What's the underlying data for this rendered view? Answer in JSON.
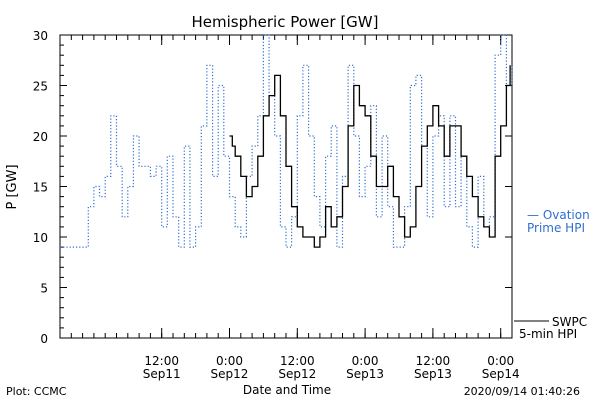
{
  "chart_data": {
    "type": "line",
    "title": "Hemispheric Power [GW]",
    "xlabel": "Date and Time",
    "ylabel": "P [GW]",
    "ylim": [
      0,
      30
    ],
    "xlim": [
      "2020-09-10T18:00",
      "2020-09-14T02:00"
    ],
    "yticks": [
      0,
      5,
      10,
      15,
      20,
      25,
      30
    ],
    "xticks": [
      {
        "x": "2020-09-11T12:00",
        "line1": "12:00",
        "line2": "Sep11"
      },
      {
        "x": "2020-09-12T00:00",
        "line1": "0:00",
        "line2": "Sep12"
      },
      {
        "x": "2020-09-12T12:00",
        "line1": "12:00",
        "line2": "Sep12"
      },
      {
        "x": "2020-09-13T00:00",
        "line1": "0:00",
        "line2": "Sep13"
      },
      {
        "x": "2020-09-13T12:00",
        "line1": "12:00",
        "line2": "Sep13"
      },
      {
        "x": "2020-09-14T00:00",
        "line1": "0:00",
        "line2": "Sep14"
      }
    ],
    "series": [
      {
        "name": "Ovation Prime HPI",
        "style": "dotted",
        "color": "#2f6fd0",
        "points": [
          [
            "2020-09-10T18:00",
            9
          ],
          [
            "2020-09-10T20:00",
            9
          ],
          [
            "2020-09-10T22:00",
            9
          ],
          [
            "2020-09-10T23:00",
            13
          ],
          [
            "2020-09-11T00:00",
            15
          ],
          [
            "2020-09-11T01:00",
            14
          ],
          [
            "2020-09-11T02:00",
            16
          ],
          [
            "2020-09-11T03:00",
            22
          ],
          [
            "2020-09-11T04:00",
            17
          ],
          [
            "2020-09-11T05:00",
            12
          ],
          [
            "2020-09-11T06:00",
            15
          ],
          [
            "2020-09-11T07:00",
            20
          ],
          [
            "2020-09-11T08:00",
            17
          ],
          [
            "2020-09-11T09:00",
            17
          ],
          [
            "2020-09-11T10:00",
            16
          ],
          [
            "2020-09-11T11:00",
            17
          ],
          [
            "2020-09-11T12:00",
            11
          ],
          [
            "2020-09-11T13:00",
            18
          ],
          [
            "2020-09-11T14:00",
            12
          ],
          [
            "2020-09-11T15:00",
            9
          ],
          [
            "2020-09-11T16:00",
            19
          ],
          [
            "2020-09-11T17:00",
            9
          ],
          [
            "2020-09-11T18:00",
            11
          ],
          [
            "2020-09-11T19:00",
            21
          ],
          [
            "2020-09-11T20:00",
            27
          ],
          [
            "2020-09-11T21:00",
            16
          ],
          [
            "2020-09-11T22:00",
            25
          ],
          [
            "2020-09-11T23:00",
            18
          ],
          [
            "2020-09-12T00:00",
            14
          ],
          [
            "2020-09-12T01:00",
            11
          ],
          [
            "2020-09-12T02:00",
            10
          ],
          [
            "2020-09-12T03:00",
            16
          ],
          [
            "2020-09-12T04:00",
            19
          ],
          [
            "2020-09-12T05:00",
            22
          ],
          [
            "2020-09-12T06:00",
            30
          ],
          [
            "2020-09-12T07:00",
            24
          ],
          [
            "2020-09-12T08:00",
            20
          ],
          [
            "2020-09-12T09:00",
            11
          ],
          [
            "2020-09-12T10:00",
            9
          ],
          [
            "2020-09-12T11:00",
            12
          ],
          [
            "2020-09-12T12:00",
            22
          ],
          [
            "2020-09-12T13:00",
            27
          ],
          [
            "2020-09-12T14:00",
            20
          ],
          [
            "2020-09-12T15:00",
            14
          ],
          [
            "2020-09-12T16:00",
            11
          ],
          [
            "2020-09-12T17:00",
            18
          ],
          [
            "2020-09-12T18:00",
            21
          ],
          [
            "2020-09-12T19:00",
            9
          ],
          [
            "2020-09-12T20:00",
            16
          ],
          [
            "2020-09-12T21:00",
            27
          ],
          [
            "2020-09-12T22:00",
            20
          ],
          [
            "2020-09-12T23:00",
            14
          ],
          [
            "2020-09-13T00:00",
            17
          ],
          [
            "2020-09-13T01:00",
            23
          ],
          [
            "2020-09-13T02:00",
            12
          ],
          [
            "2020-09-13T03:00",
            20
          ],
          [
            "2020-09-13T04:00",
            13
          ],
          [
            "2020-09-13T05:00",
            9
          ],
          [
            "2020-09-13T06:00",
            9
          ],
          [
            "2020-09-13T07:00",
            13
          ],
          [
            "2020-09-13T08:00",
            25
          ],
          [
            "2020-09-13T09:00",
            26
          ],
          [
            "2020-09-13T10:00",
            19
          ],
          [
            "2020-09-13T11:00",
            12
          ],
          [
            "2020-09-13T12:00",
            20
          ],
          [
            "2020-09-13T13:00",
            22
          ],
          [
            "2020-09-13T14:00",
            13
          ],
          [
            "2020-09-13T15:00",
            22
          ],
          [
            "2020-09-13T16:00",
            13
          ],
          [
            "2020-09-13T17:00",
            18
          ],
          [
            "2020-09-13T18:00",
            11
          ],
          [
            "2020-09-13T19:00",
            9
          ],
          [
            "2020-09-13T20:00",
            16
          ],
          [
            "2020-09-13T21:00",
            11
          ],
          [
            "2020-09-13T22:00",
            12
          ],
          [
            "2020-09-13T23:00",
            28
          ],
          [
            "2020-09-14T00:00",
            30
          ],
          [
            "2020-09-14T01:00",
            25
          ],
          [
            "2020-09-14T02:00",
            27
          ]
        ]
      },
      {
        "name": "SWPC 5-min HPI",
        "style": "solid",
        "color": "#000000",
        "points": [
          [
            "2020-09-12T00:00",
            20
          ],
          [
            "2020-09-12T00:30",
            19
          ],
          [
            "2020-09-12T01:00",
            18
          ],
          [
            "2020-09-12T02:00",
            16
          ],
          [
            "2020-09-12T03:00",
            14
          ],
          [
            "2020-09-12T04:00",
            15
          ],
          [
            "2020-09-12T05:00",
            18
          ],
          [
            "2020-09-12T06:00",
            22
          ],
          [
            "2020-09-12T07:00",
            24
          ],
          [
            "2020-09-12T08:00",
            26
          ],
          [
            "2020-09-12T09:00",
            22
          ],
          [
            "2020-09-12T10:00",
            17
          ],
          [
            "2020-09-12T11:00",
            13
          ],
          [
            "2020-09-12T12:00",
            11
          ],
          [
            "2020-09-12T13:00",
            10
          ],
          [
            "2020-09-12T14:00",
            10
          ],
          [
            "2020-09-12T15:00",
            9
          ],
          [
            "2020-09-12T16:00",
            10
          ],
          [
            "2020-09-12T17:00",
            13
          ],
          [
            "2020-09-12T18:00",
            11
          ],
          [
            "2020-09-12T19:00",
            12
          ],
          [
            "2020-09-12T20:00",
            15
          ],
          [
            "2020-09-12T21:00",
            21
          ],
          [
            "2020-09-12T22:00",
            25
          ],
          [
            "2020-09-12T23:00",
            23
          ],
          [
            "2020-09-13T00:00",
            22
          ],
          [
            "2020-09-13T01:00",
            18
          ],
          [
            "2020-09-13T02:00",
            15
          ],
          [
            "2020-09-13T03:00",
            15
          ],
          [
            "2020-09-13T04:00",
            17
          ],
          [
            "2020-09-13T05:00",
            14
          ],
          [
            "2020-09-13T06:00",
            12
          ],
          [
            "2020-09-13T07:00",
            10
          ],
          [
            "2020-09-13T08:00",
            11
          ],
          [
            "2020-09-13T09:00",
            15
          ],
          [
            "2020-09-13T10:00",
            19
          ],
          [
            "2020-09-13T11:00",
            21
          ],
          [
            "2020-09-13T12:00",
            23
          ],
          [
            "2020-09-13T13:00",
            21
          ],
          [
            "2020-09-13T14:00",
            18
          ],
          [
            "2020-09-13T15:00",
            21
          ],
          [
            "2020-09-13T16:00",
            21
          ],
          [
            "2020-09-13T17:00",
            18
          ],
          [
            "2020-09-13T18:00",
            16
          ],
          [
            "2020-09-13T19:00",
            14
          ],
          [
            "2020-09-13T20:00",
            12
          ],
          [
            "2020-09-13T21:00",
            11
          ],
          [
            "2020-09-13T22:00",
            10
          ],
          [
            "2020-09-13T23:00",
            18
          ],
          [
            "2020-09-14T00:00",
            21
          ],
          [
            "2020-09-14T01:00",
            25
          ],
          [
            "2020-09-14T01:40",
            27
          ]
        ]
      }
    ]
  },
  "legend": {
    "blue": {
      "line1": "— Ovation",
      "line2": "Prime HPI"
    },
    "black": {
      "line1": "SWPC",
      "line2": "5-min HPI"
    }
  },
  "footer": {
    "left": "Plot: CCMC",
    "right": "2020/09/14 01:40:26"
  }
}
